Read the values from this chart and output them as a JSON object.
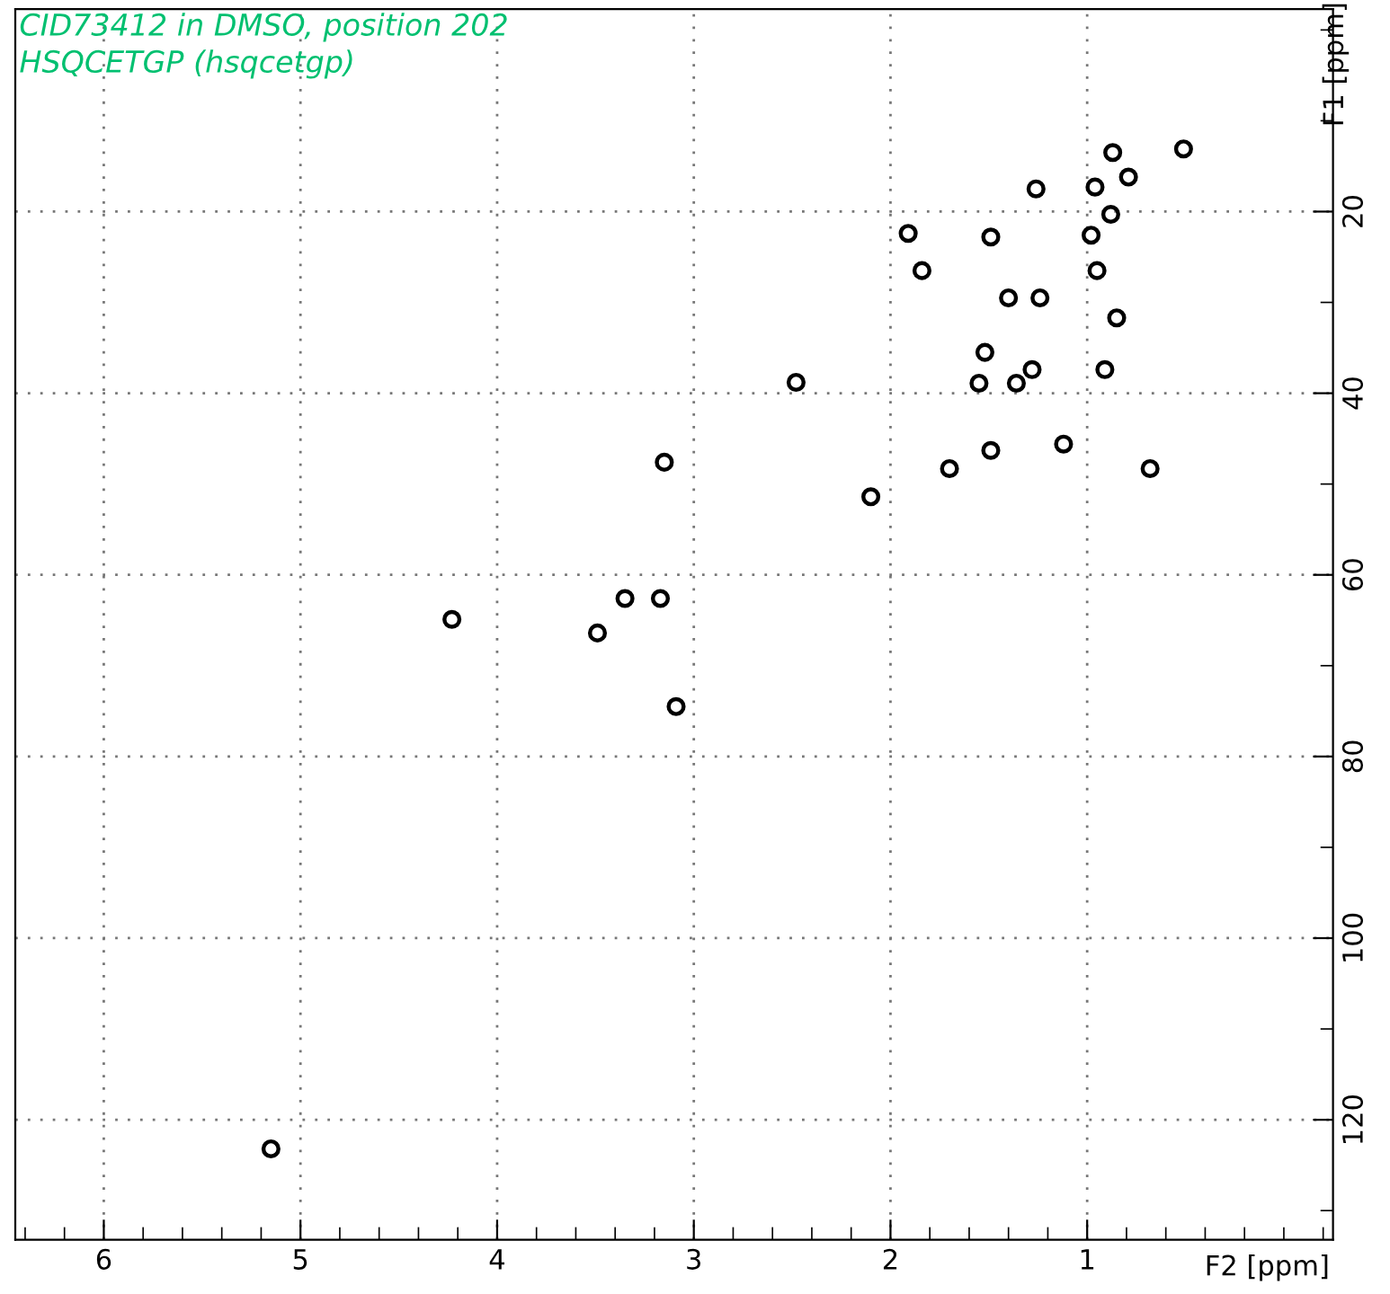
{
  "chart_data": {
    "type": "scatter",
    "title": "CID73412 in DMSO, position 202",
    "subtitle": "HSQCETGP (hsqcetgp)",
    "xlabel": "F2 [ppm]",
    "ylabel": "F1 [ppm]",
    "xlim": [
      6.45,
      -0.25
    ],
    "ylim": [
      133.2,
      -2.3
    ],
    "xticks": [
      1,
      2,
      3,
      4,
      5,
      6
    ],
    "yticks": [
      20,
      40,
      60,
      80,
      100,
      120
    ],
    "grid": true,
    "marker": "circle",
    "series": [
      {
        "color": "#000000",
        "x": [
          0.87,
          0.79,
          0.96,
          1.26,
          0.88,
          1.91,
          1.49,
          0.98,
          1.84,
          0.95,
          1.4,
          1.24,
          1.52,
          1.28,
          1.36,
          1.55,
          0.91,
          2.48,
          1.12,
          1.49,
          1.7,
          0.68,
          2.1,
          0.51,
          0.85,
          3.15,
          3.35,
          3.17,
          4.23,
          3.49,
          3.09,
          5.15
        ],
        "values": [
          13.5,
          16.2,
          17.3,
          17.5,
          20.3,
          22.4,
          22.8,
          22.6,
          26.5,
          26.5,
          29.5,
          29.5,
          35.5,
          37.4,
          38.9,
          38.9,
          37.4,
          38.8,
          45.6,
          46.3,
          48.3,
          48.3,
          51.4,
          13.1,
          31.7,
          47.6,
          62.6,
          62.6,
          64.9,
          66.4,
          74.5,
          123.2
        ]
      }
    ]
  }
}
